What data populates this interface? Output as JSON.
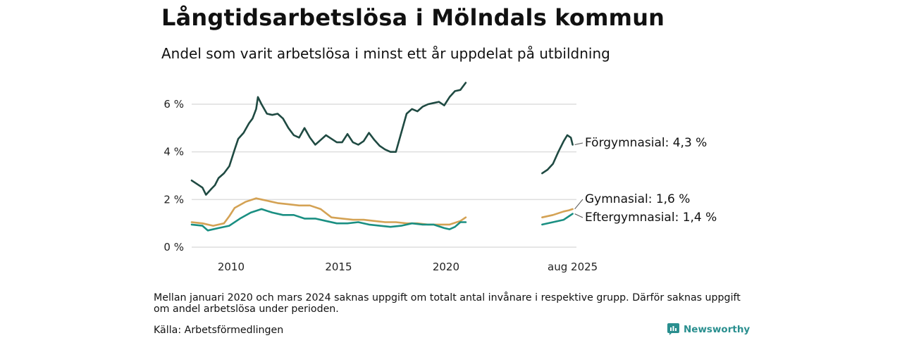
{
  "title": "Långtidsarbetslösa i Mölndals kommun",
  "subtitle": "Andel som varit arbetslösa i minst ett år uppdelat på utbildning",
  "note": "Mellan januari 2020 och mars 2024 saknas uppgift om totalt antal invånare i respektive grupp. Därför saknas uppgift om andel arbetslösa under perioden.",
  "source": "Källa: Arbetsförmedlingen",
  "brand": {
    "name": "Newsworthy",
    "icon": "newsworthy-logo-icon",
    "color": "#2a8f8f"
  },
  "chart_data": {
    "type": "line",
    "title": "Långtidsarbetslösa i Mölndals kommun",
    "subtitle": "Andel som varit arbetslösa i minst ett år uppdelat på utbildning",
    "ylim": [
      0,
      7
    ],
    "yticks": [
      0,
      2,
      4,
      6
    ],
    "ytick_labels": [
      "0 %",
      "2 %",
      "4 %",
      "6 %"
    ],
    "x_range": [
      "2008-03",
      "2025-08"
    ],
    "x_axis_compressed_gap": [
      "2021-01",
      "2024-03"
    ],
    "xtick_labels": [
      {
        "x": "2010-01",
        "label": "2010"
      },
      {
        "x": "2015-01",
        "label": "2015"
      },
      {
        "x": "2020-01",
        "label": "2020"
      },
      {
        "x": "2025-08",
        "label": "aug 2025"
      }
    ],
    "grid": "horizontal",
    "legend": "end-labels",
    "series": [
      {
        "name": "Förgymnasial",
        "end_label": "Förgymnasial: 4,3 %",
        "color": "#1f4a42",
        "segments": [
          [
            {
              "x": "2008-03",
              "y": 2.8
            },
            {
              "x": "2008-06",
              "y": 2.65
            },
            {
              "x": "2008-09",
              "y": 2.5
            },
            {
              "x": "2008-11",
              "y": 2.2
            },
            {
              "x": "2009-02",
              "y": 2.45
            },
            {
              "x": "2009-04",
              "y": 2.6
            },
            {
              "x": "2009-06",
              "y": 2.9
            },
            {
              "x": "2009-09",
              "y": 3.1
            },
            {
              "x": "2009-12",
              "y": 3.4
            },
            {
              "x": "2010-03",
              "y": 4.1
            },
            {
              "x": "2010-05",
              "y": 4.55
            },
            {
              "x": "2010-08",
              "y": 4.8
            },
            {
              "x": "2010-11",
              "y": 5.2
            },
            {
              "x": "2011-01",
              "y": 5.4
            },
            {
              "x": "2011-03",
              "y": 5.8
            },
            {
              "x": "2011-04",
              "y": 6.3
            },
            {
              "x": "2011-06",
              "y": 6.0
            },
            {
              "x": "2011-09",
              "y": 5.6
            },
            {
              "x": "2011-12",
              "y": 5.55
            },
            {
              "x": "2012-03",
              "y": 5.6
            },
            {
              "x": "2012-06",
              "y": 5.4
            },
            {
              "x": "2012-09",
              "y": 5.0
            },
            {
              "x": "2012-12",
              "y": 4.7
            },
            {
              "x": "2013-03",
              "y": 4.6
            },
            {
              "x": "2013-06",
              "y": 5.0
            },
            {
              "x": "2013-09",
              "y": 4.6
            },
            {
              "x": "2013-12",
              "y": 4.3
            },
            {
              "x": "2014-03",
              "y": 4.5
            },
            {
              "x": "2014-06",
              "y": 4.7
            },
            {
              "x": "2014-09",
              "y": 4.55
            },
            {
              "x": "2014-12",
              "y": 4.4
            },
            {
              "x": "2015-03",
              "y": 4.4
            },
            {
              "x": "2015-06",
              "y": 4.75
            },
            {
              "x": "2015-09",
              "y": 4.4
            },
            {
              "x": "2015-12",
              "y": 4.3
            },
            {
              "x": "2016-03",
              "y": 4.45
            },
            {
              "x": "2016-06",
              "y": 4.8
            },
            {
              "x": "2016-09",
              "y": 4.5
            },
            {
              "x": "2016-12",
              "y": 4.25
            },
            {
              "x": "2017-03",
              "y": 4.1
            },
            {
              "x": "2017-06",
              "y": 4.0
            },
            {
              "x": "2017-09",
              "y": 4.0
            },
            {
              "x": "2017-12",
              "y": 4.8
            },
            {
              "x": "2018-03",
              "y": 5.6
            },
            {
              "x": "2018-06",
              "y": 5.8
            },
            {
              "x": "2018-09",
              "y": 5.7
            },
            {
              "x": "2018-12",
              "y": 5.9
            },
            {
              "x": "2019-03",
              "y": 6.0
            },
            {
              "x": "2019-06",
              "y": 6.05
            },
            {
              "x": "2019-09",
              "y": 6.1
            },
            {
              "x": "2019-12",
              "y": 5.95
            },
            {
              "x": "2020-03",
              "y": 6.3
            },
            {
              "x": "2020-06",
              "y": 6.55
            },
            {
              "x": "2020-09",
              "y": 6.6
            },
            {
              "x": "2020-12",
              "y": 6.9
            }
          ],
          [
            {
              "x": "2024-03",
              "y": 3.1
            },
            {
              "x": "2024-06",
              "y": 3.25
            },
            {
              "x": "2024-09",
              "y": 3.5
            },
            {
              "x": "2024-12",
              "y": 4.0
            },
            {
              "x": "2025-03",
              "y": 4.45
            },
            {
              "x": "2025-05",
              "y": 4.7
            },
            {
              "x": "2025-07",
              "y": 4.6
            },
            {
              "x": "2025-08",
              "y": 4.3
            }
          ]
        ]
      },
      {
        "name": "Gymnasial",
        "end_label": "Gymnasial: 1,6 %",
        "color": "#d4a254",
        "segments": [
          [
            {
              "x": "2008-03",
              "y": 1.05
            },
            {
              "x": "2008-09",
              "y": 1.0
            },
            {
              "x": "2009-03",
              "y": 0.9
            },
            {
              "x": "2009-09",
              "y": 1.0
            },
            {
              "x": "2009-12",
              "y": 1.3
            },
            {
              "x": "2010-03",
              "y": 1.65
            },
            {
              "x": "2010-09",
              "y": 1.9
            },
            {
              "x": "2011-03",
              "y": 2.05
            },
            {
              "x": "2011-06",
              "y": 2.0
            },
            {
              "x": "2011-09",
              "y": 1.95
            },
            {
              "x": "2012-03",
              "y": 1.85
            },
            {
              "x": "2012-09",
              "y": 1.8
            },
            {
              "x": "2013-03",
              "y": 1.75
            },
            {
              "x": "2013-09",
              "y": 1.75
            },
            {
              "x": "2014-03",
              "y": 1.6
            },
            {
              "x": "2014-09",
              "y": 1.25
            },
            {
              "x": "2015-03",
              "y": 1.2
            },
            {
              "x": "2015-09",
              "y": 1.15
            },
            {
              "x": "2016-03",
              "y": 1.15
            },
            {
              "x": "2016-09",
              "y": 1.1
            },
            {
              "x": "2017-03",
              "y": 1.05
            },
            {
              "x": "2017-09",
              "y": 1.05
            },
            {
              "x": "2018-03",
              "y": 1.0
            },
            {
              "x": "2018-09",
              "y": 1.0
            },
            {
              "x": "2019-03",
              "y": 0.95
            },
            {
              "x": "2019-09",
              "y": 0.95
            },
            {
              "x": "2020-03",
              "y": 0.95
            },
            {
              "x": "2020-09",
              "y": 1.1
            },
            {
              "x": "2020-12",
              "y": 1.25
            }
          ],
          [
            {
              "x": "2024-03",
              "y": 1.25
            },
            {
              "x": "2024-09",
              "y": 1.35
            },
            {
              "x": "2025-03",
              "y": 1.5
            },
            {
              "x": "2025-06",
              "y": 1.55
            },
            {
              "x": "2025-08",
              "y": 1.6
            }
          ]
        ]
      },
      {
        "name": "Eftergymnasial",
        "end_label": "Eftergymnasial: 1,4 %",
        "color": "#1a8f82",
        "segments": [
          [
            {
              "x": "2008-03",
              "y": 0.95
            },
            {
              "x": "2008-09",
              "y": 0.9
            },
            {
              "x": "2008-12",
              "y": 0.7
            },
            {
              "x": "2009-06",
              "y": 0.8
            },
            {
              "x": "2009-12",
              "y": 0.9
            },
            {
              "x": "2010-06",
              "y": 1.2
            },
            {
              "x": "2010-12",
              "y": 1.45
            },
            {
              "x": "2011-06",
              "y": 1.6
            },
            {
              "x": "2011-12",
              "y": 1.45
            },
            {
              "x": "2012-06",
              "y": 1.35
            },
            {
              "x": "2012-12",
              "y": 1.35
            },
            {
              "x": "2013-06",
              "y": 1.2
            },
            {
              "x": "2013-12",
              "y": 1.2
            },
            {
              "x": "2014-06",
              "y": 1.1
            },
            {
              "x": "2014-12",
              "y": 1.0
            },
            {
              "x": "2015-06",
              "y": 1.0
            },
            {
              "x": "2015-12",
              "y": 1.05
            },
            {
              "x": "2016-06",
              "y": 0.95
            },
            {
              "x": "2016-12",
              "y": 0.9
            },
            {
              "x": "2017-06",
              "y": 0.85
            },
            {
              "x": "2017-12",
              "y": 0.9
            },
            {
              "x": "2018-06",
              "y": 1.0
            },
            {
              "x": "2018-12",
              "y": 0.95
            },
            {
              "x": "2019-06",
              "y": 0.95
            },
            {
              "x": "2019-12",
              "y": 0.8
            },
            {
              "x": "2020-03",
              "y": 0.75
            },
            {
              "x": "2020-06",
              "y": 0.85
            },
            {
              "x": "2020-09",
              "y": 1.05
            },
            {
              "x": "2020-12",
              "y": 1.05
            }
          ],
          [
            {
              "x": "2024-03",
              "y": 0.95
            },
            {
              "x": "2024-09",
              "y": 1.05
            },
            {
              "x": "2025-03",
              "y": 1.15
            },
            {
              "x": "2025-06",
              "y": 1.3
            },
            {
              "x": "2025-08",
              "y": 1.4
            }
          ]
        ]
      }
    ]
  }
}
